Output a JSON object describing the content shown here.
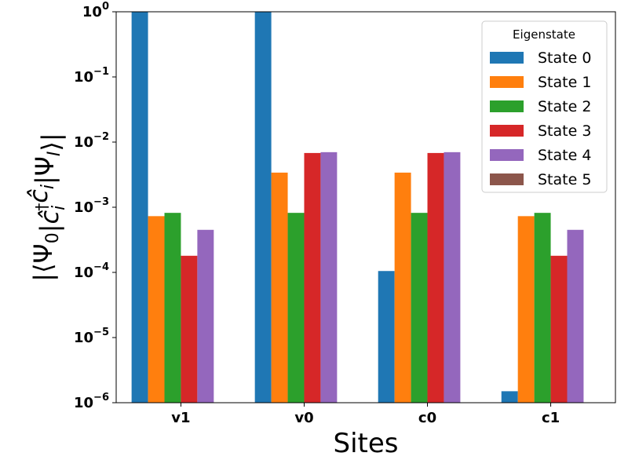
{
  "chart_data": {
    "type": "bar",
    "yscale": "log",
    "categories": [
      "v1",
      "v0",
      "c0",
      "c1"
    ],
    "series": [
      {
        "name": "State 0",
        "color": "#1f77b4",
        "values": [
          1.0,
          1.0,
          0.000105,
          1.5e-06
        ]
      },
      {
        "name": "State 1",
        "color": "#ff7f0e",
        "values": [
          0.00073,
          0.0034,
          0.0034,
          0.00073
        ]
      },
      {
        "name": "State 2",
        "color": "#2ca02c",
        "values": [
          0.00082,
          0.00082,
          0.00082,
          0.00082
        ]
      },
      {
        "name": "State 3",
        "color": "#d62728",
        "values": [
          0.00018,
          0.0068,
          0.0068,
          0.00018
        ]
      },
      {
        "name": "State 4",
        "color": "#9467bd",
        "values": [
          0.00045,
          0.007,
          0.007,
          0.00045
        ]
      },
      {
        "name": "State 5",
        "color": "#8c564b",
        "values": [
          null,
          null,
          null,
          null
        ]
      }
    ],
    "xlabel": "Sites",
    "ylabel": "|⟨Ψ0|ĉi†ĉi|ΨI⟩|",
    "ylim": [
      1e-06,
      1
    ],
    "ytick_exponents": [
      0,
      -1,
      -2,
      -3,
      -4,
      -5,
      -6
    ],
    "legend": {
      "title": "Eigenstate",
      "placement": "top-right"
    },
    "grid": false
  }
}
